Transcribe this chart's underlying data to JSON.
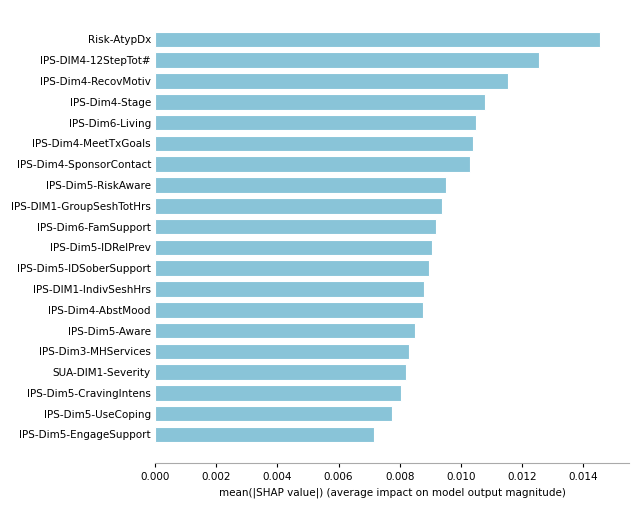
{
  "categories": [
    "IPS-Dim5-EngageSupport",
    "IPS-Dim5-UseCoping",
    "IPS-Dim5-CravingIntens",
    "SUA-DIM1-Severity",
    "IPS-Dim3-MHServices",
    "IPS-Dim5-Aware",
    "IPS-Dim4-AbstMood",
    "IPS-DIM1-IndivSeshHrs",
    "IPS-Dim5-IDSoberSupport",
    "IPS-Dim5-IDRelPrev",
    "IPS-Dim6-FamSupport",
    "IPS-DIM1-GroupSeshTotHrs",
    "IPS-Dim5-RiskAware",
    "IPS-Dim4-SponsorContact",
    "IPS-Dim4-MeetTxGoals",
    "IPS-Dim6-Living",
    "IPS-Dim4-Stage",
    "IPS-Dim4-RecovMotiv",
    "IPS-DIM4-12StepTot#",
    "Risk-AtypDx"
  ],
  "values": [
    0.00715,
    0.00775,
    0.00805,
    0.0082,
    0.0083,
    0.0085,
    0.00875,
    0.0088,
    0.00895,
    0.00905,
    0.0092,
    0.0094,
    0.0095,
    0.0103,
    0.0104,
    0.0105,
    0.0108,
    0.01155,
    0.01255,
    0.01455
  ],
  "bar_color": "#89C4D8",
  "xlabel": "mean(|SHAP value|) (average impact on model output magnitude)",
  "xlim": [
    0,
    0.0155
  ],
  "xtick_values": [
    0.0,
    0.002,
    0.004,
    0.006,
    0.008,
    0.01,
    0.012,
    0.014
  ],
  "background_color": "#ffffff",
  "figure_bg_color": "#ffffff",
  "bar_height": 0.75,
  "ytick_fontsize": 7.5,
  "xtick_fontsize": 7.5,
  "xlabel_fontsize": 7.5
}
